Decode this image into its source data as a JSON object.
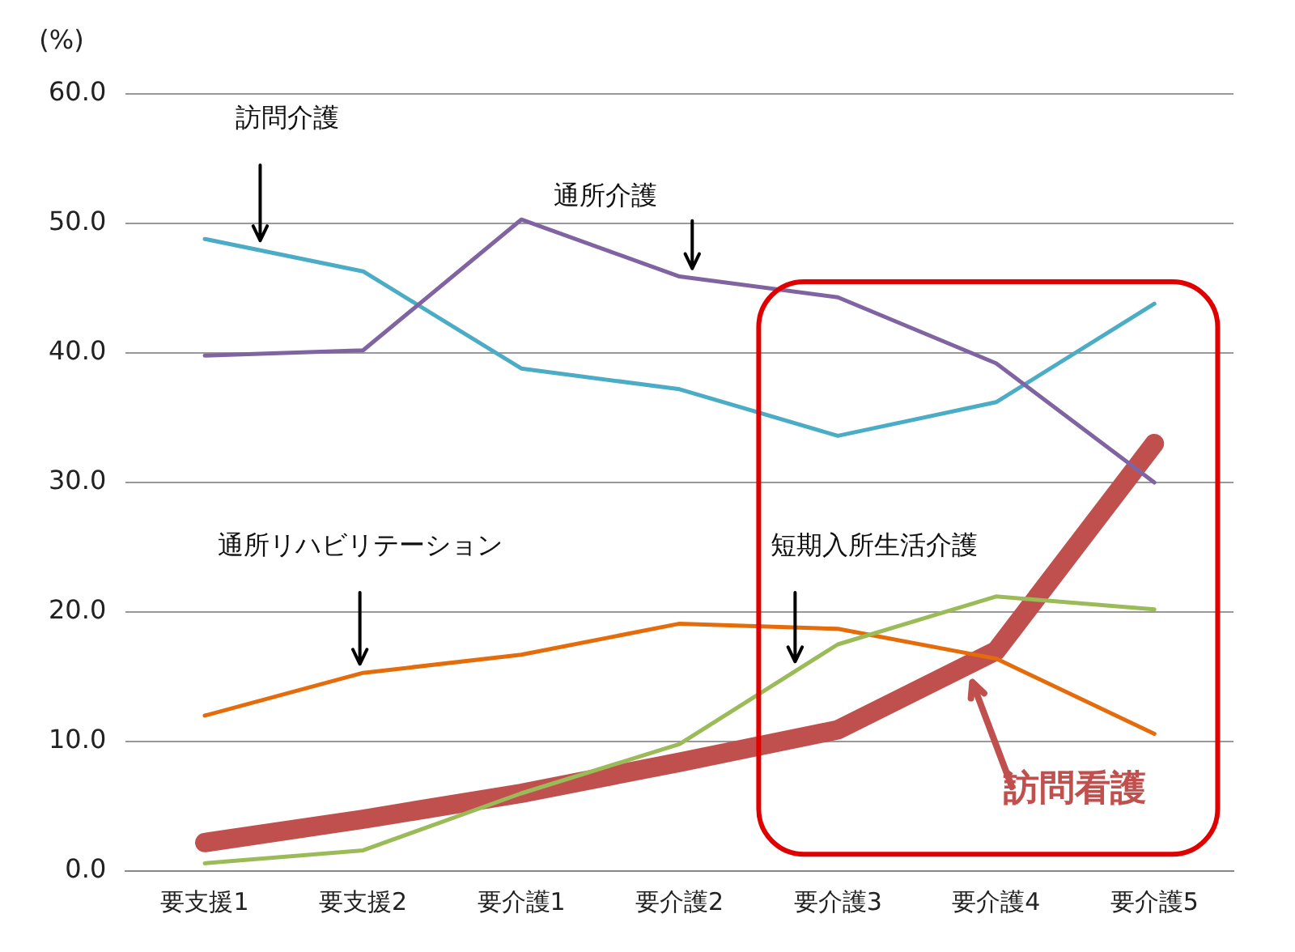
{
  "chart_data": {
    "type": "line",
    "ylabel": "(%)",
    "categories": [
      "要支援1",
      "要支援2",
      "要介護1",
      "要介護2",
      "要介護3",
      "要介護4",
      "要介護5"
    ],
    "series": [
      {
        "name": "訪問介護",
        "color": "#4bacc6",
        "values": [
          48.8,
          46.3,
          38.8,
          37.2,
          33.6,
          36.2,
          43.8
        ]
      },
      {
        "name": "通所介護",
        "color": "#8064a2",
        "values": [
          39.8,
          40.2,
          50.3,
          45.9,
          44.3,
          39.2,
          30.0
        ]
      },
      {
        "name": "通所リハビリテーション",
        "color": "#e46c0a",
        "values": [
          12.0,
          15.3,
          16.7,
          19.1,
          18.7,
          16.4,
          10.6
        ]
      },
      {
        "name": "短期入所生活介護",
        "color": "#9bbb59",
        "values": [
          0.6,
          1.6,
          6.0,
          9.8,
          17.5,
          21.2,
          20.2
        ]
      },
      {
        "name": "訪問看護",
        "color": "#c0504d",
        "values": [
          2.2,
          4.0,
          6.0,
          8.4,
          10.9,
          17.0,
          33.0
        ]
      }
    ],
    "ylim": [
      0,
      60
    ],
    "yticks": [
      {
        "value": 0,
        "label": "0.0"
      },
      {
        "value": 10,
        "label": "10.0"
      },
      {
        "value": 20,
        "label": "20.0"
      },
      {
        "value": 30,
        "label": "30.0"
      },
      {
        "value": 40,
        "label": "40.0"
      },
      {
        "value": 50,
        "label": "50.0"
      },
      {
        "value": 60,
        "label": "60.0"
      }
    ],
    "grid": "y",
    "legend": false,
    "marker": "none",
    "line_style": "solid"
  }
}
